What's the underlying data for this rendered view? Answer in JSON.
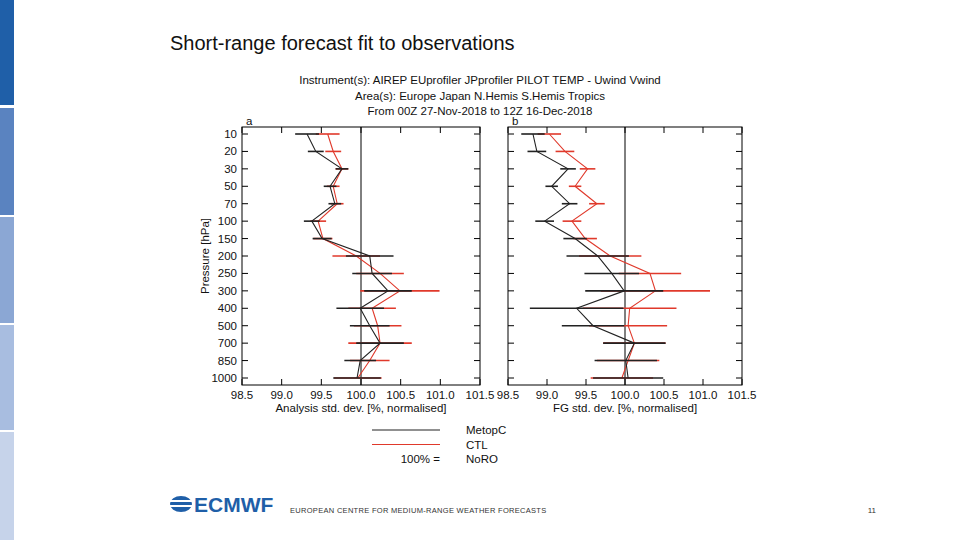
{
  "slide": {
    "title": "Short-range forecast fit to observations",
    "header": [
      "Instrument(s): AIREP EUprofiler JPprofiler PILOT TEMP - Uwind Vwind",
      "Area(s): Europe Japan N.Hemis S.Hemis Tropics",
      "From 00Z 27-Nov-2018 to 12Z 16-Dec-2018"
    ],
    "logo": "ECMWF",
    "footer": "EUROPEAN CENTRE FOR MEDIUM-RANGE WEATHER FORECASTS",
    "page": 11
  },
  "chart_data": [
    {
      "type": "line",
      "title": "a",
      "orientation": "horizontal",
      "x_label": "Analysis std. dev. [%, normalised]",
      "y_label": "Pressure [hPa]",
      "categories": [
        "10",
        "20",
        "30",
        "50",
        "70",
        "100",
        "150",
        "200",
        "250",
        "300",
        "400",
        "500",
        "700",
        "850",
        "1000"
      ],
      "xlim": [
        98.5,
        101.5
      ],
      "xticks": [
        98.5,
        {
          "value": 99,
          "label": "99.0"
        },
        99.5,
        {
          "value": 100,
          "label": "100.0"
        },
        100.5,
        {
          "value": 101,
          "label": "101.0"
        },
        101.5
      ],
      "grid": false,
      "reference_value": 100,
      "reference_label": "100% =",
      "reference_name": "NoRO",
      "series": [
        {
          "name": "MetopC",
          "color": "#222222",
          "values": [
            99.32,
            99.43,
            99.76,
            99.61,
            99.67,
            99.38,
            99.51,
            100.11,
            100.14,
            100.34,
            99.99,
            100.11,
            100.24,
            99.99,
            99.95
          ],
          "errors": [
            0.15,
            0.1,
            0.08,
            0.08,
            0.08,
            0.1,
            0.12,
            0.3,
            0.25,
            0.3,
            0.3,
            0.25,
            0.3,
            0.2,
            0.3
          ]
        },
        {
          "name": "CTL",
          "color": "#e0392b",
          "values": [
            99.58,
            99.65,
            99.76,
            99.65,
            99.7,
            99.46,
            99.52,
            99.94,
            100.24,
            100.49,
            100.14,
            100.21,
            100.24,
            100.11,
            99.96
          ],
          "errors": [
            0.15,
            0.1,
            0.08,
            0.08,
            0.08,
            0.1,
            0.12,
            0.3,
            0.3,
            0.5,
            0.3,
            0.3,
            0.4,
            0.25,
            0.3
          ]
        }
      ]
    },
    {
      "type": "line",
      "title": "b",
      "orientation": "horizontal",
      "x_label": "FG std. dev. [%, normalised]",
      "categories": [
        "10",
        "20",
        "30",
        "50",
        "70",
        "100",
        "150",
        "200",
        "250",
        "300",
        "400",
        "500",
        "700",
        "850",
        "1000"
      ],
      "xlim": [
        98.5,
        101.5
      ],
      "xticks": [
        98.5,
        {
          "value": 99,
          "label": "99.0"
        },
        99.5,
        {
          "value": 100,
          "label": "100.0"
        },
        100.5,
        {
          "value": 101,
          "label": "101.0"
        },
        101.5
      ],
      "grid": false,
      "tick_labels": "x",
      "reference_value": 100,
      "series": [
        {
          "name": "MetopC",
          "color": "#222222",
          "values": [
            98.82,
            98.87,
            99.27,
            99.06,
            99.29,
            98.97,
            99.36,
            99.65,
            99.83,
            99.99,
            99.38,
            99.59,
            100.12,
            100.01,
            100.04
          ],
          "errors": [
            0.15,
            0.12,
            0.1,
            0.08,
            0.1,
            0.12,
            0.15,
            0.4,
            0.35,
            0.5,
            0.6,
            0.4,
            0.4,
            0.4,
            0.45
          ]
        },
        {
          "name": "CTL",
          "color": "#e0392b",
          "values": [
            99.03,
            99.23,
            99.52,
            99.36,
            99.64,
            99.32,
            99.49,
            99.81,
            100.32,
            100.39,
            100.06,
            100.04,
            100.12,
            100.04,
            99.96
          ],
          "errors": [
            0.15,
            0.12,
            0.1,
            0.08,
            0.1,
            0.12,
            0.15,
            0.4,
            0.4,
            0.7,
            0.6,
            0.5,
            0.4,
            0.4,
            0.4
          ]
        }
      ]
    }
  ]
}
